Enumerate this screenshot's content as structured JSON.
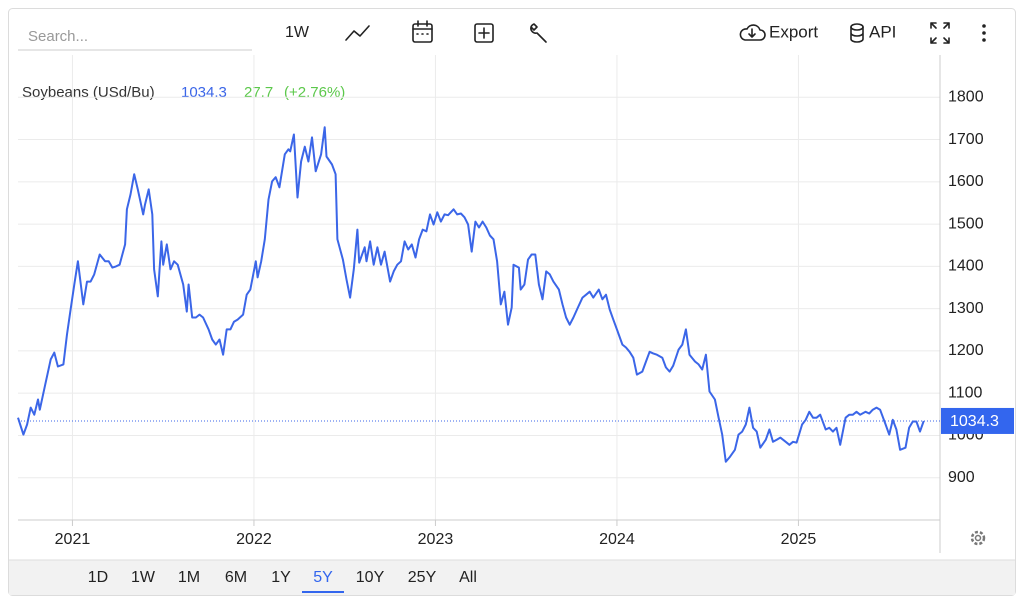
{
  "toolbar": {
    "search_placeholder": "Search...",
    "interval": "1W",
    "export": "Export",
    "api": "API"
  },
  "ranges": [
    "1D",
    "1W",
    "1M",
    "6M",
    "1Y",
    "5Y",
    "10Y",
    "25Y",
    "All"
  ],
  "active_range": "5Y",
  "chart_data": {
    "type": "line",
    "title": "Soybeans (USd/Bu)",
    "change": 27.7,
    "change_label": "(+2.76%)",
    "xlim": [
      2020.7,
      2025.78
    ],
    "xticks": [
      2021,
      2022,
      2023,
      2024,
      2025
    ],
    "ylim": [
      800,
      1900
    ],
    "yticks": [
      900,
      1000,
      1100,
      1200,
      1300,
      1400,
      1500,
      1600,
      1700,
      1800
    ],
    "grid": true,
    "x": [
      2020.7,
      2020.73,
      2020.75,
      2020.77,
      2020.79,
      2020.81,
      2020.82,
      2020.85,
      2020.88,
      2020.9,
      2020.92,
      2020.95,
      2020.97,
      2020.99,
      2021.01,
      2021.03,
      2021.06,
      2021.08,
      2021.1,
      2021.12,
      2021.15,
      2021.18,
      2021.2,
      2021.22,
      2021.24,
      2021.26,
      2021.29,
      2021.3,
      2021.32,
      2021.34,
      2021.36,
      2021.39,
      2021.4,
      2021.42,
      2021.44,
      2021.45,
      2021.47,
      2021.49,
      2021.5,
      2021.52,
      2021.54,
      2021.56,
      2021.58,
      2021.61,
      2021.63,
      2021.64,
      2021.66,
      2021.68,
      2021.7,
      2021.72,
      2021.75,
      2021.77,
      2021.79,
      2021.81,
      2021.83,
      2021.85,
      2021.87,
      2021.89,
      2021.91,
      2021.94,
      2021.96,
      2021.98,
      2022.01,
      2022.02,
      2022.04,
      2022.06,
      2022.08,
      2022.1,
      2022.12,
      2022.14,
      2022.17,
      2022.19,
      2022.2,
      2022.22,
      2022.24,
      2022.26,
      2022.28,
      2022.3,
      2022.32,
      2022.34,
      2022.37,
      2022.39,
      2022.4,
      2022.43,
      2022.45,
      2022.46,
      2022.49,
      2022.51,
      2022.53,
      2022.55,
      2022.57,
      2022.58,
      2022.61,
      2022.62,
      2022.64,
      2022.66,
      2022.68,
      2022.7,
      2022.72,
      2022.75,
      2022.77,
      2022.79,
      2022.81,
      2022.83,
      2022.85,
      2022.87,
      2022.89,
      2022.91,
      2022.93,
      2022.95,
      2022.97,
      2022.99,
      2023.01,
      2023.03,
      2023.05,
      2023.07,
      2023.1,
      2023.12,
      2023.14,
      2023.16,
      2023.18,
      2023.2,
      2023.22,
      2023.24,
      2023.26,
      2023.28,
      2023.3,
      2023.32,
      2023.34,
      2023.36,
      2023.38,
      2023.4,
      2023.42,
      2023.43,
      2023.46,
      2023.47,
      2023.49,
      2023.51,
      2023.53,
      2023.55,
      2023.57,
      2023.59,
      2023.61,
      2023.63,
      2023.65,
      2023.68,
      2023.7,
      2023.72,
      2023.74,
      2023.76,
      2023.78,
      2023.81,
      2023.83,
      2023.85,
      2023.87,
      2023.9,
      2023.92,
      2023.94,
      2023.96,
      2023.98,
      2024.0,
      2024.03,
      2024.05,
      2024.07,
      2024.09,
      2024.11,
      2024.14,
      2024.16,
      2024.18,
      2024.2,
      2024.22,
      2024.25,
      2024.27,
      2024.29,
      2024.31,
      2024.34,
      2024.36,
      2024.38,
      2024.4,
      2024.43,
      2024.45,
      2024.47,
      2024.49,
      2024.51,
      2024.54,
      2024.56,
      2024.58,
      2024.6,
      2024.62,
      2024.65,
      2024.67,
      2024.69,
      2024.71,
      2024.73,
      2024.75,
      2024.77,
      2024.79,
      2024.82,
      2024.84,
      2024.86,
      2024.88,
      2024.9,
      2024.93,
      2024.95,
      2024.97,
      2024.99,
      2025.02,
      2025.04,
      2025.06,
      2025.08,
      2025.1,
      2025.12,
      2025.15,
      2025.17,
      2025.19,
      2025.21,
      2025.23,
      2025.26,
      2025.28,
      2025.3,
      2025.32,
      2025.34,
      2025.37,
      2025.39,
      2025.41,
      2025.43,
      2025.45,
      2025.48,
      2025.5,
      2025.52,
      2025.54,
      2025.56,
      2025.59,
      2025.61,
      2025.63,
      2025.65,
      2025.67,
      2025.69
    ],
    "series": [
      {
        "name": "Soybeans (USd/Bu)",
        "color": "#3b66e8",
        "values": [
          1042,
          1002,
          1026,
          1066,
          1049,
          1085,
          1061,
          1120,
          1180,
          1196,
          1163,
          1168,
          1239,
          1298,
          1357,
          1412,
          1310,
          1364,
          1364,
          1381,
          1428,
          1412,
          1412,
          1397,
          1400,
          1404,
          1452,
          1535,
          1570,
          1618,
          1582,
          1523,
          1546,
          1582,
          1523,
          1393,
          1329,
          1459,
          1404,
          1452,
          1393,
          1412,
          1404,
          1357,
          1293,
          1357,
          1279,
          1279,
          1286,
          1279,
          1251,
          1227,
          1215,
          1227,
          1191,
          1251,
          1251,
          1269,
          1274,
          1286,
          1333,
          1345,
          1412,
          1374,
          1412,
          1464,
          1558,
          1601,
          1611,
          1587,
          1665,
          1677,
          1672,
          1712,
          1563,
          1648,
          1683,
          1648,
          1705,
          1625,
          1665,
          1729,
          1660,
          1641,
          1618,
          1464,
          1416,
          1369,
          1326,
          1393,
          1487,
          1409,
          1445,
          1412,
          1459,
          1404,
          1445,
          1404,
          1435,
          1364,
          1388,
          1404,
          1412,
          1459,
          1440,
          1452,
          1421,
          1464,
          1487,
          1483,
          1523,
          1499,
          1528,
          1506,
          1523,
          1521,
          1535,
          1523,
          1525,
          1516,
          1499,
          1435,
          1506,
          1492,
          1506,
          1492,
          1473,
          1464,
          1412,
          1310,
          1340,
          1262,
          1303,
          1404,
          1397,
          1345,
          1357,
          1416,
          1428,
          1428,
          1357,
          1322,
          1388,
          1381,
          1364,
          1345,
          1310,
          1279,
          1262,
          1279,
          1298,
          1326,
          1333,
          1340,
          1326,
          1345,
          1322,
          1333,
          1298,
          1274,
          1251,
          1215,
          1208,
          1198,
          1184,
          1144,
          1151,
          1175,
          1198,
          1194,
          1191,
          1184,
          1161,
          1151,
          1165,
          1203,
          1215,
          1251,
          1191,
          1175,
          1168,
          1156,
          1191,
          1104,
          1085,
          1042,
          1002,
          938,
          948,
          966,
          1002,
          1009,
          1026,
          1066,
          1018,
          1009,
          971,
          990,
          1014,
          985,
          990,
          995,
          985,
          978,
          985,
          983,
          1026,
          1037,
          1056,
          1042,
          1042,
          1049,
          1014,
          1018,
          1009,
          1018,
          978,
          1042,
          1049,
          1049,
          1056,
          1049,
          1056,
          1052,
          1061,
          1066,
          1061,
          1026,
          1002,
          1037,
          1014,
          966,
          971,
          1018,
          1033,
          1033,
          1009,
          1034.3
        ]
      }
    ]
  }
}
